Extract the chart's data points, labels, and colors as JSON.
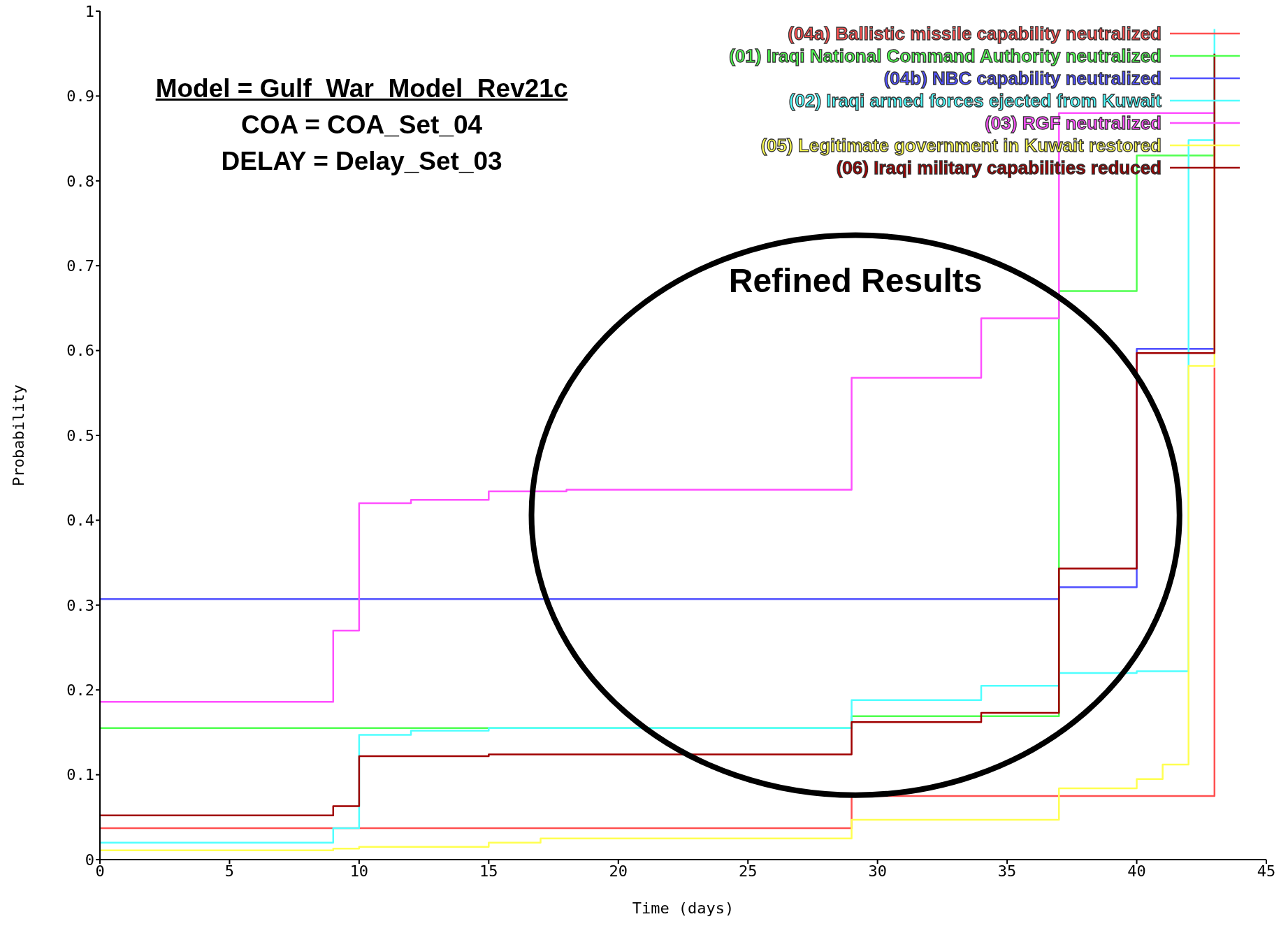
{
  "chart_data": {
    "type": "step",
    "xlabel": "Time (days)",
    "ylabel": "Probability",
    "annotations": [
      "Model = Gulf_War_Model_Rev21c",
      "COA = COA_Set_04",
      "DELAY = Delay_Set_03",
      "Refined Results"
    ],
    "xlim": [
      0,
      45
    ],
    "xticks": [
      0,
      5,
      10,
      15,
      20,
      25,
      30,
      35,
      40,
      45
    ],
    "ylim": [
      0,
      1
    ],
    "yticks": [
      0,
      0.1,
      0.2,
      0.3,
      0.4,
      0.5,
      0.6,
      0.7,
      0.8,
      0.9,
      1
    ],
    "legend": "top right",
    "grid": false,
    "marker": "none",
    "line_style": "solid",
    "series": [
      {
        "name": "(04a) Ballistic missile capability neutralized",
        "color": "#ff5050",
        "x": [
          0,
          29,
          43
        ],
        "values": [
          0.037,
          0.075,
          0.58
        ]
      },
      {
        "name": "(01) Iraqi National Command Authority neutralized",
        "color": "#50ff50",
        "x": [
          0,
          29,
          37,
          40,
          43
        ],
        "values": [
          0.155,
          0.169,
          0.67,
          0.83,
          0.95
        ]
      },
      {
        "name": "(04b) NBC capability neutralized",
        "color": "#5050ff",
        "x": [
          0,
          37,
          40,
          43
        ],
        "values": [
          0.307,
          0.321,
          0.602,
          0.602
        ]
      },
      {
        "name": "(02) Iraqi armed forces ejected from Kuwait",
        "color": "#50ffff",
        "x": [
          0,
          9,
          10,
          12,
          15,
          29,
          34,
          37,
          40,
          42,
          43
        ],
        "values": [
          0.02,
          0.037,
          0.147,
          0.152,
          0.155,
          0.188,
          0.205,
          0.22,
          0.222,
          0.848,
          0.979
        ]
      },
      {
        "name": "(03) RGF neutralized",
        "color": "#ff50ff",
        "x": [
          0,
          9,
          10,
          12,
          15,
          18,
          29,
          34,
          37,
          43
        ],
        "values": [
          0.186,
          0.27,
          0.42,
          0.424,
          0.434,
          0.436,
          0.568,
          0.638,
          0.88,
          0.88
        ]
      },
      {
        "name": "(05) Legitimate government in Kuwait restored",
        "color": "#ffff50",
        "x": [
          0,
          9,
          10,
          15,
          17,
          29,
          37,
          40,
          41,
          42,
          43
        ],
        "values": [
          0.011,
          0.013,
          0.015,
          0.02,
          0.025,
          0.047,
          0.084,
          0.095,
          0.112,
          0.582,
          0.842
        ]
      },
      {
        "name": "(06) Iraqi military capabilities reduced",
        "color": "#a00000",
        "x": [
          0,
          9,
          10,
          15,
          29,
          34,
          37,
          40,
          43
        ],
        "values": [
          0.052,
          0.063,
          0.122,
          0.124,
          0.162,
          0.173,
          0.343,
          0.597,
          0.95
        ]
      }
    ]
  }
}
